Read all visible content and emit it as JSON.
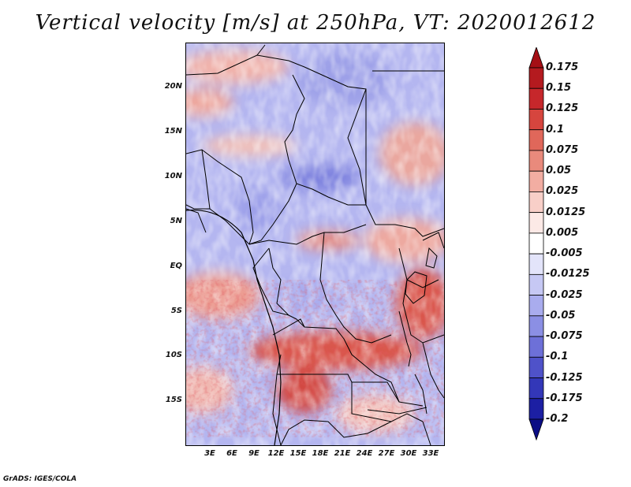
{
  "title": "Vertical velocity [m/s] at 250hPa, VT: 2020012612",
  "lat_ticks": [
    "20N",
    "15N",
    "10N",
    "5N",
    "EQ",
    "5S",
    "10S",
    "15S"
  ],
  "lon_ticks": [
    "3E",
    "6E",
    "9E",
    "12E",
    "15E",
    "18E",
    "21E",
    "24E",
    "27E",
    "30E",
    "33E"
  ],
  "colorbar": {
    "levels": [
      "0.175",
      "0.15",
      "0.125",
      "0.1",
      "0.075",
      "0.05",
      "0.025",
      "0.0125",
      "0.005",
      "-0.005",
      "-0.0125",
      "-0.025",
      "-0.05",
      "-0.075",
      "-0.1",
      "-0.125",
      "-0.175",
      "-0.2"
    ],
    "colors": [
      "#a50f15",
      "#b41a1f",
      "#c6272b",
      "#d6453e",
      "#e0675a",
      "#e98a7c",
      "#f2ada2",
      "#f8cfc8",
      "#fce9e6",
      "#ffffff",
      "#e3e4fa",
      "#c6c8f4",
      "#a9acee",
      "#8b8fe4",
      "#6d70d8",
      "#4f52c9",
      "#3337b8",
      "#1c1fa3",
      "#0b0d85"
    ]
  },
  "footer": "GrADS: IGES/COLA"
}
